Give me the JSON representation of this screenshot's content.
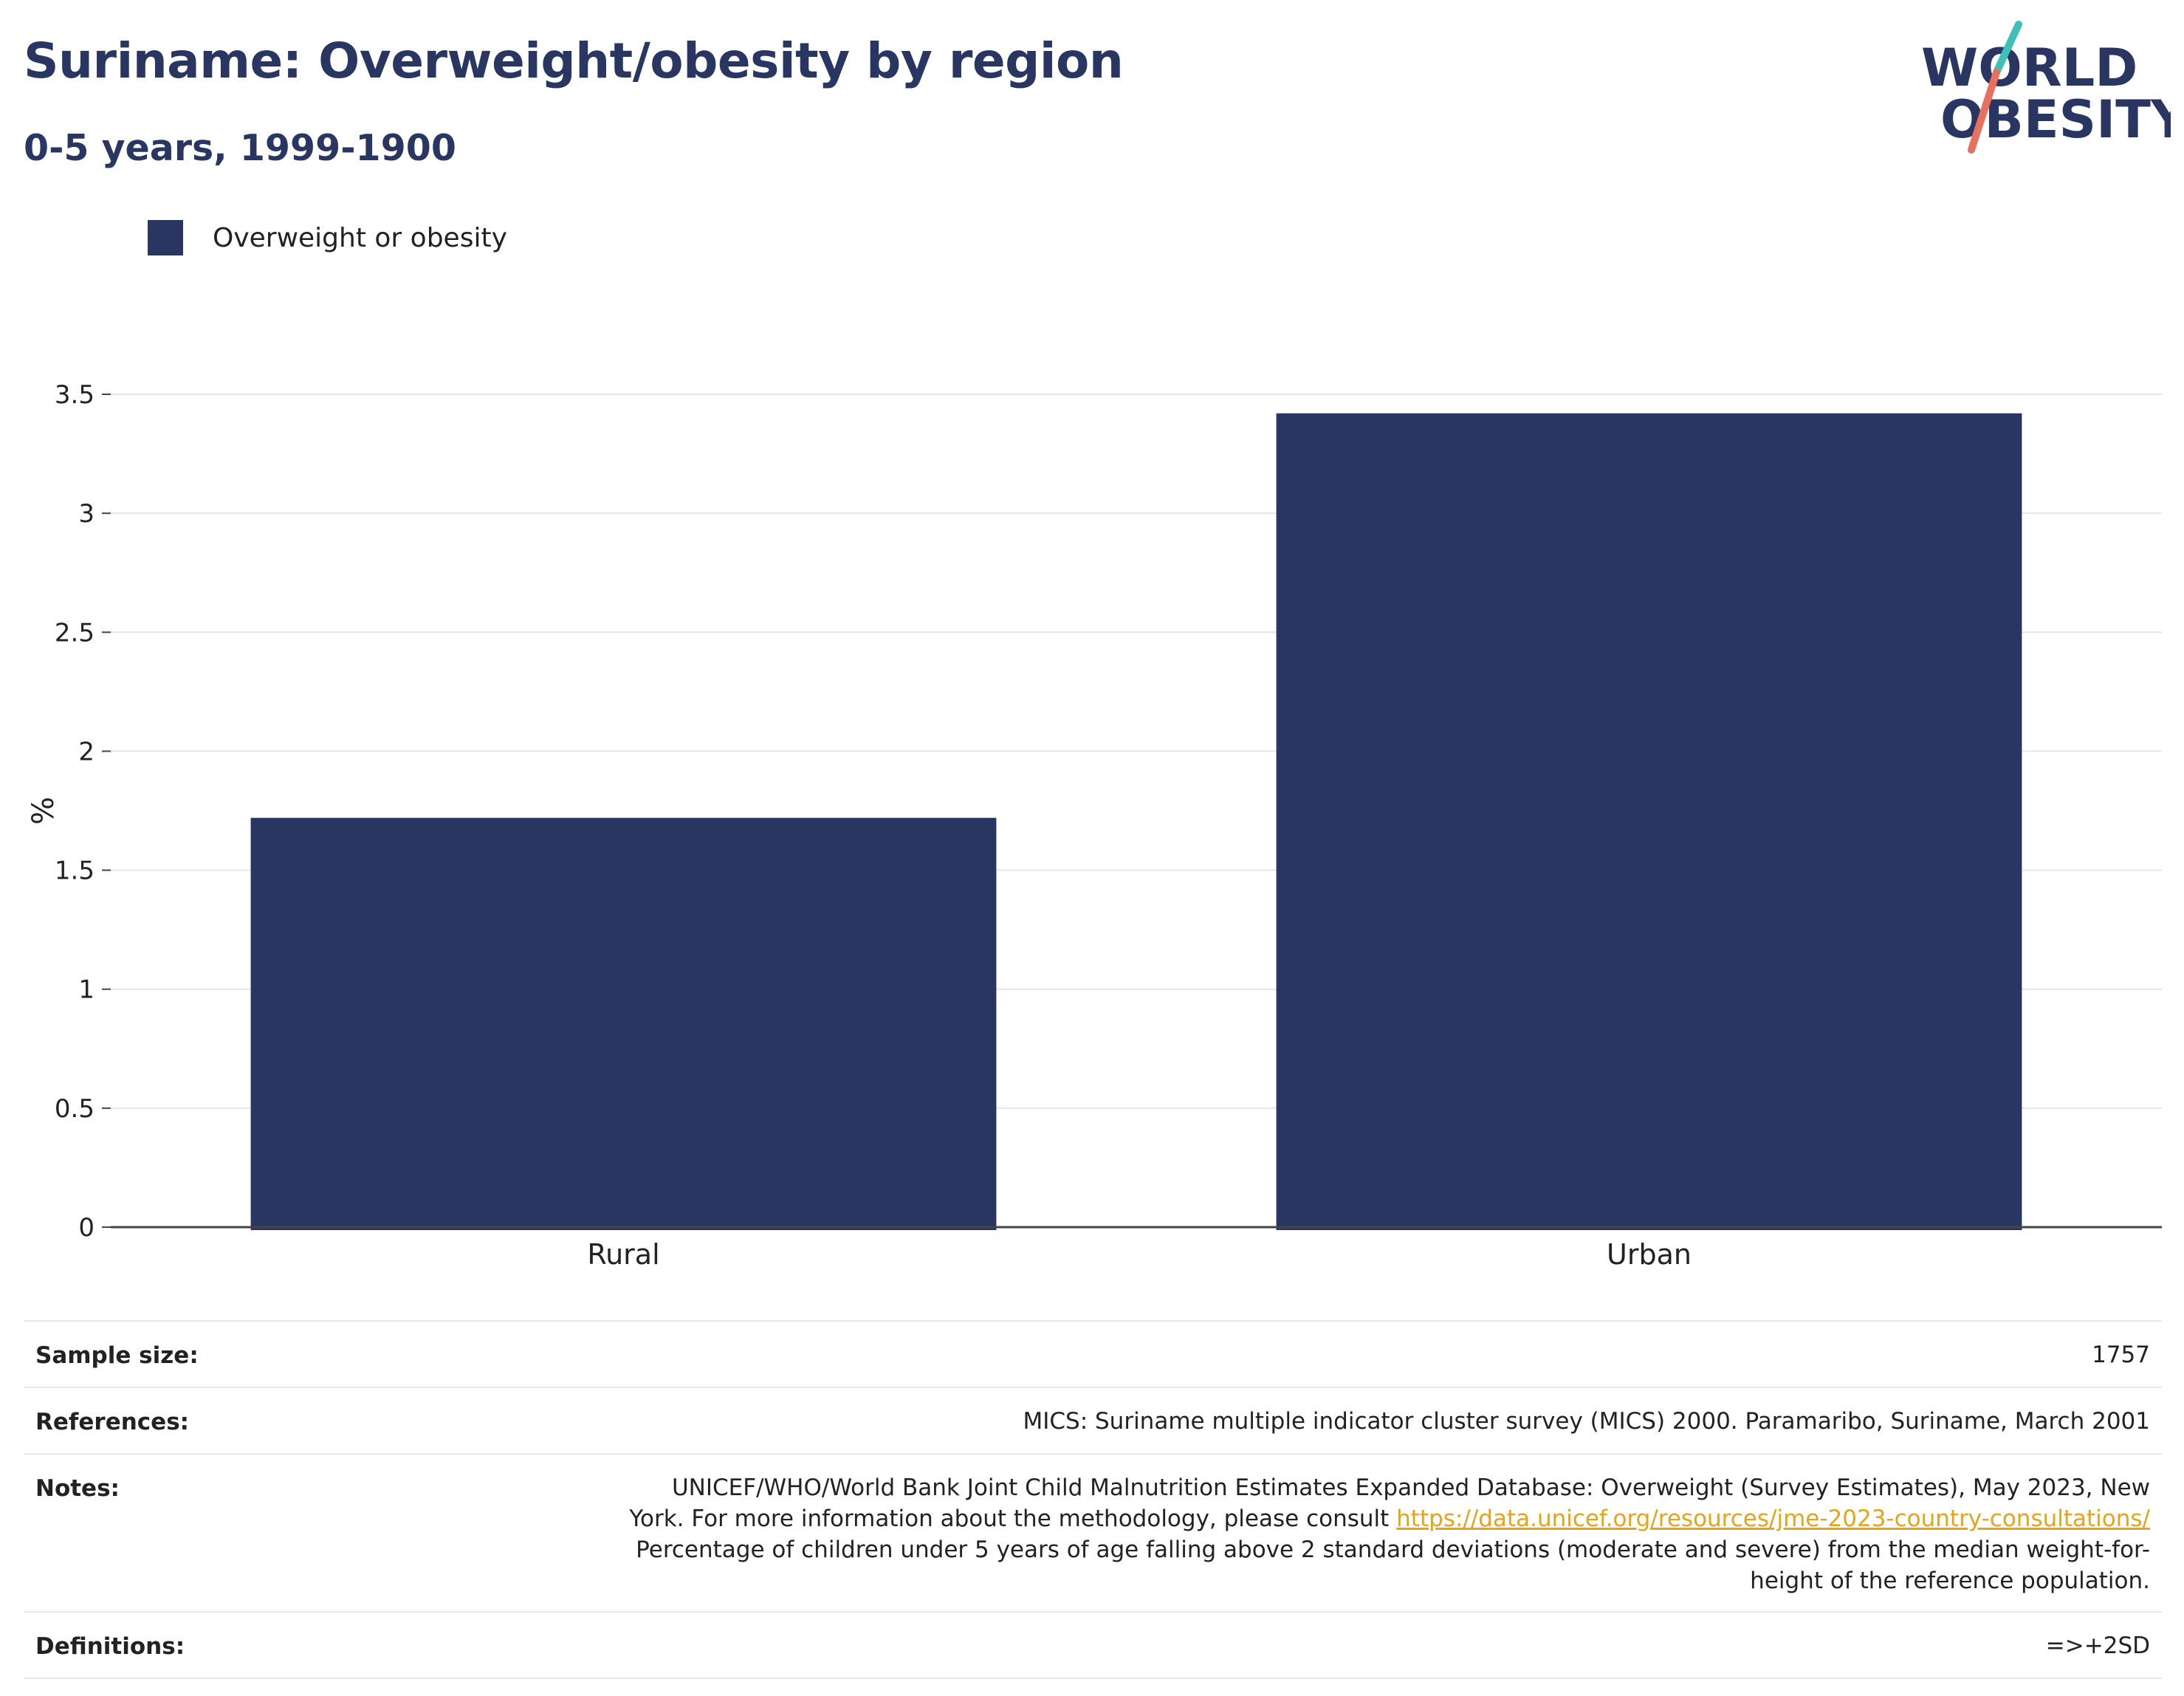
{
  "header": {
    "title": "Suriname: Overweight/obesity by region",
    "subtitle": "0-5 years, 1999-1900"
  },
  "logo": {
    "line1": "WORLD",
    "line2": "OBESITY",
    "text_color": "#2a3662",
    "accent_teal": "#3cc0b8",
    "accent_coral": "#e8705f"
  },
  "chart_data": {
    "type": "bar",
    "categories": [
      "Rural",
      "Urban"
    ],
    "series": [
      {
        "name": "Overweight or obesity",
        "values": [
          1.72,
          3.42
        ],
        "color": "#2a3662"
      }
    ],
    "title": "Suriname: Overweight/obesity by region",
    "subtitle": "0-5 years, 1999-1900",
    "xlabel": "",
    "ylabel": "%",
    "ylim": [
      0,
      3.5
    ],
    "yticks": [
      {
        "value": 0,
        "label": "0"
      },
      {
        "value": 0.5,
        "label": "0.5"
      },
      {
        "value": 1,
        "label": "1"
      },
      {
        "value": 1.5,
        "label": "1.5"
      },
      {
        "value": 2,
        "label": "2"
      },
      {
        "value": 2.5,
        "label": "2.5"
      },
      {
        "value": 3,
        "label": "3"
      },
      {
        "value": 3.5,
        "label": "3.5"
      }
    ],
    "grid": true,
    "legend_position": "top-left"
  },
  "info": {
    "sample_size_label": "Sample size:",
    "sample_size_value": "1757",
    "references_label": "References:",
    "references_value": "MICS: Suriname multiple indicator cluster survey (MICS) 2000. Paramaribo, Suriname, March 2001",
    "notes_label": "Notes:",
    "notes_line1": "UNICEF/WHO/World Bank Joint Child Malnutrition Estimates Expanded Database: Overweight (Survey Estimates), May 2023, New",
    "notes_line2_prefix": "York. For more information about the methodology, please consult ",
    "notes_link": "https://data.unicef.org/resources/jme-2023-country-consultations/",
    "notes_line3": "Percentage of children under 5 years of age falling above 2 standard deviations (moderate and severe) from the median weight-for-",
    "notes_line4": "height of the reference population.",
    "definitions_label": "Definitions:",
    "definitions_value": "=>+2SD"
  }
}
